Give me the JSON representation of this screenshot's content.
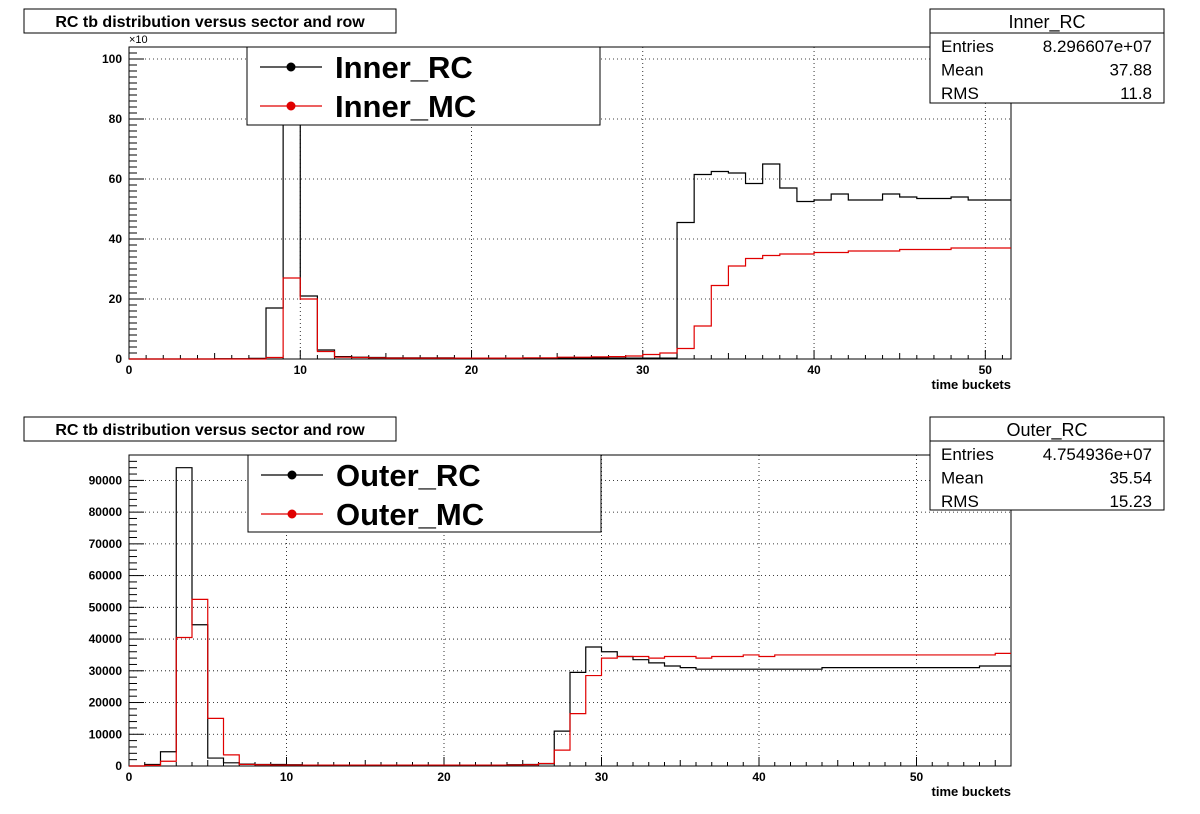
{
  "chart_data": [
    {
      "type": "line",
      "title": "RC tb distribution versus sector and row",
      "xlabel": "time buckets",
      "ylabel": "",
      "y_multiplier_label": "×10",
      "xlim": [
        0,
        51.5
      ],
      "ylim": [
        0,
        104
      ],
      "x_ticks": [
        0,
        10,
        20,
        30,
        40,
        50
      ],
      "y_ticks": [
        0,
        20,
        40,
        60,
        80,
        100
      ],
      "grid": true,
      "legend": {
        "position": "top-left",
        "entries": [
          "Inner_RC",
          "Inner_MC"
        ]
      },
      "stats": {
        "name": "Inner_RC",
        "Entries": "8.296607e+07",
        "Mean": "37.88",
        "RMS": "11.8"
      },
      "series": [
        {
          "name": "Inner_RC",
          "color": "#000000",
          "bin_start": 0,
          "values": [
            0,
            0,
            0,
            0,
            0,
            0.1,
            0.1,
            0.2,
            17,
            100,
            21,
            3,
            0.8,
            0.6,
            0.5,
            0.4,
            0.4,
            0.4,
            0.4,
            0.3,
            0.3,
            0.3,
            0.3,
            0.3,
            0.3,
            0.3,
            0.3,
            0.3,
            0.3,
            0.3,
            0.3,
            0.3,
            45.5,
            61.5,
            62.5,
            62,
            58.5,
            65,
            57,
            52.5,
            53,
            55,
            53,
            53,
            55,
            54,
            53.5,
            53.5,
            54,
            53,
            53,
            53
          ]
        },
        {
          "name": "Inner_MC",
          "color": "#e00000",
          "bin_start": 0,
          "values": [
            0,
            0,
            0,
            0,
            0,
            0,
            0,
            0,
            0.5,
            27,
            20,
            2.5,
            0.6,
            0.5,
            0.4,
            0.3,
            0.3,
            0.3,
            0.3,
            0.3,
            0.3,
            0.3,
            0.3,
            0.4,
            0.4,
            0.6,
            0.6,
            0.7,
            0.8,
            1,
            1.5,
            2,
            3.5,
            11,
            24.5,
            31,
            33.5,
            34.5,
            35,
            35,
            35.5,
            35.5,
            36,
            36,
            36,
            36.5,
            36.5,
            36.5,
            37,
            37,
            37,
            37
          ]
        }
      ]
    },
    {
      "type": "line",
      "title": "RC tb distribution versus sector and row",
      "xlabel": "time buckets",
      "ylabel": "",
      "xlim": [
        0,
        56
      ],
      "ylim": [
        0,
        98000
      ],
      "x_ticks": [
        0,
        10,
        20,
        30,
        40,
        50
      ],
      "y_ticks": [
        0,
        10000,
        20000,
        30000,
        40000,
        50000,
        60000,
        70000,
        80000,
        90000
      ],
      "grid": true,
      "legend": {
        "position": "top-left",
        "entries": [
          "Outer_RC",
          "Outer_MC"
        ]
      },
      "stats": {
        "name": "Outer_RC",
        "Entries": "4.754936e+07",
        "Mean": "35.54",
        "RMS": "15.23"
      },
      "series": [
        {
          "name": "Outer_RC",
          "color": "#000000",
          "bin_start": 0,
          "values": [
            0,
            500,
            4500,
            94000,
            44500,
            2500,
            1000,
            600,
            500,
            500,
            400,
            300,
            300,
            300,
            300,
            300,
            300,
            300,
            300,
            300,
            300,
            300,
            300,
            300,
            400,
            500,
            700,
            11000,
            29500,
            37500,
            36000,
            34500,
            33500,
            32500,
            31500,
            31000,
            30500,
            30500,
            30500,
            30500,
            30500,
            30500,
            30500,
            30500,
            31000,
            31000,
            31000,
            31000,
            31000,
            31000,
            31000,
            31000,
            31000,
            31000,
            31500,
            31500
          ]
        },
        {
          "name": "Outer_MC",
          "color": "#e00000",
          "bin_start": 0,
          "values": [
            0,
            200,
            1500,
            40500,
            52500,
            15000,
            3500,
            500,
            400,
            300,
            300,
            300,
            300,
            300,
            300,
            300,
            300,
            300,
            300,
            300,
            300,
            300,
            300,
            300,
            300,
            400,
            800,
            5000,
            16500,
            28500,
            34000,
            34500,
            34500,
            34000,
            34500,
            34500,
            34000,
            34500,
            34500,
            35000,
            34500,
            35000,
            35000,
            35000,
            35000,
            35000,
            35000,
            35000,
            35000,
            35000,
            35000,
            35000,
            35000,
            35000,
            35000,
            35500
          ]
        }
      ]
    }
  ]
}
